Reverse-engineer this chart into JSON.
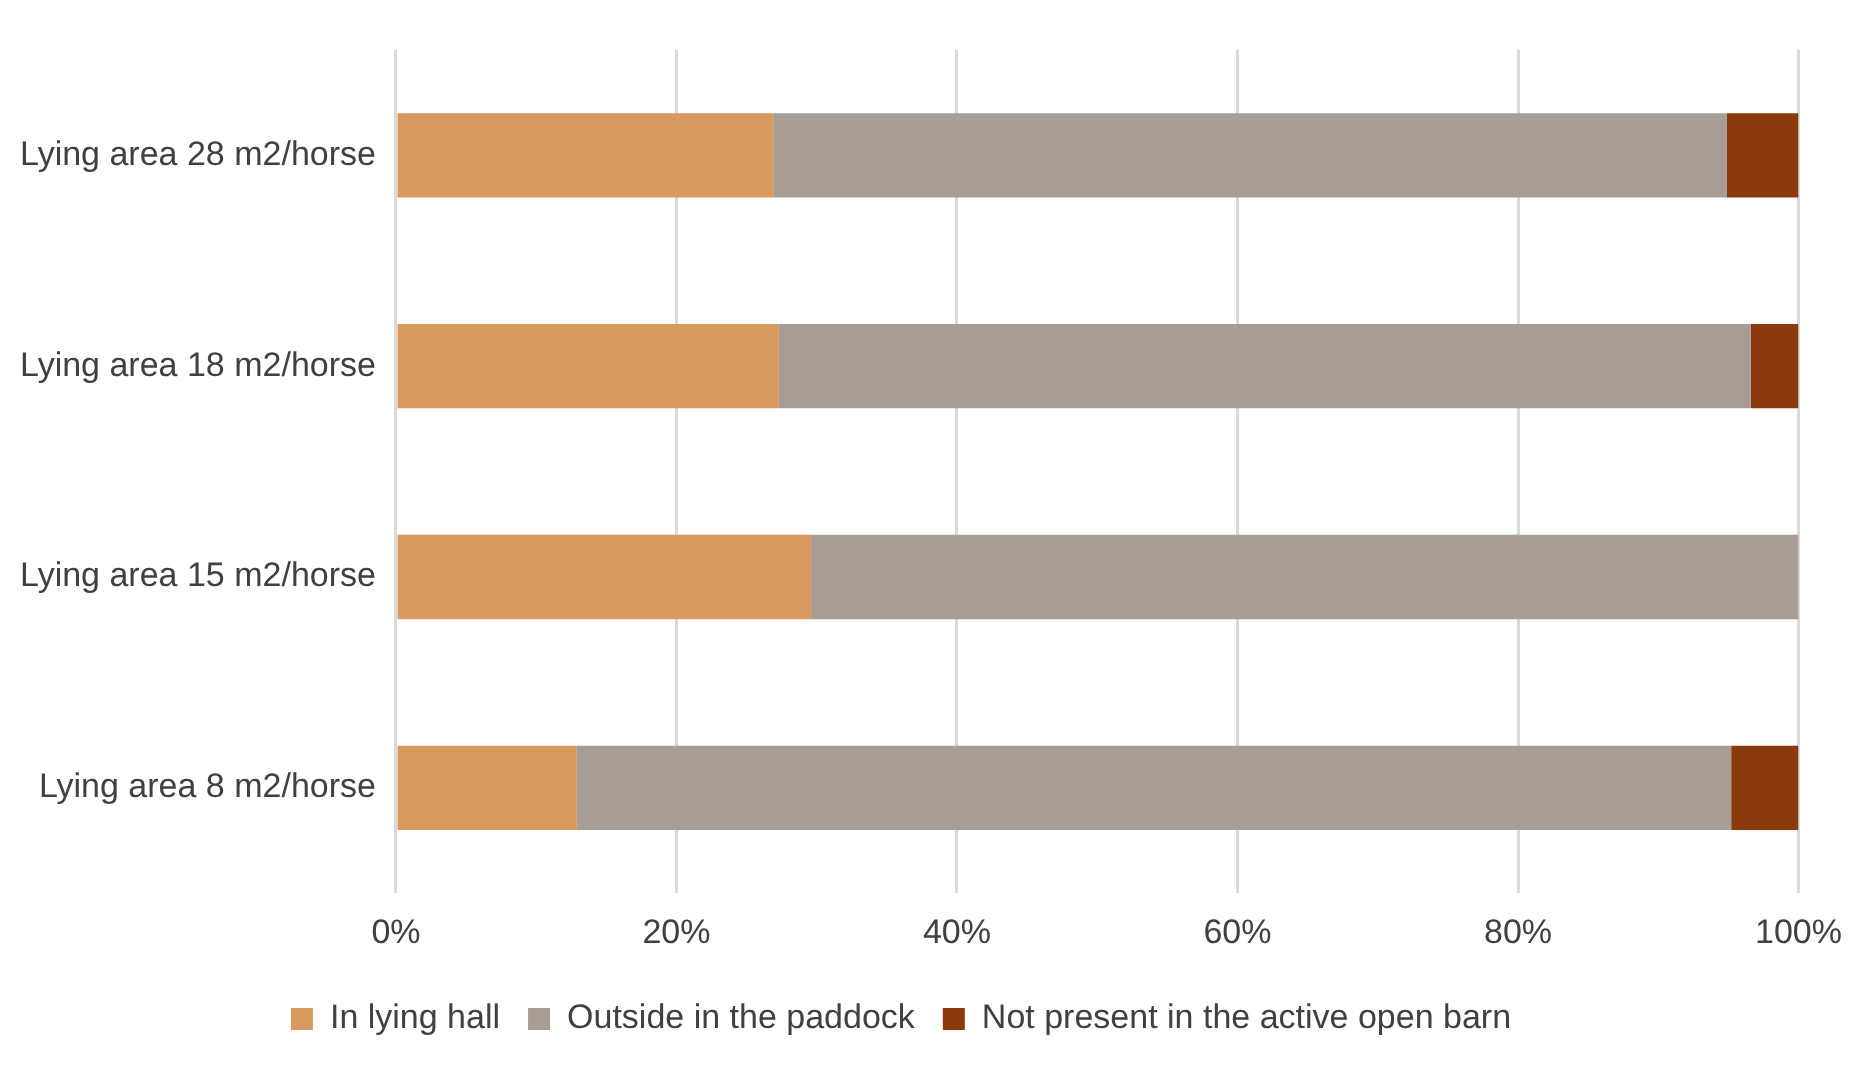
{
  "chart_data": {
    "type": "bar",
    "orientation": "horizontal",
    "stacked": true,
    "categories": [
      "Lying area 28 m2/horse",
      "Lying area 18 m2/horse",
      "Lying area 15 m2/horse",
      "Lying area 8 m2/horse"
    ],
    "series": [
      {
        "name": "In lying hall",
        "color": "#d9995f",
        "values": [
          26.9,
          27.3,
          29.6,
          12.9
        ]
      },
      {
        "name": "Outside in the paddock",
        "color": "#a89d95",
        "values": [
          68.0,
          69.3,
          70.4,
          82.3
        ]
      },
      {
        "name": "Not present in the active open barn",
        "color": "#8b3a0e",
        "values": [
          5.1,
          3.4,
          0,
          4.8
        ]
      }
    ],
    "xlim": [
      0,
      100
    ],
    "xticks": [
      {
        "value": 0,
        "label": "0%"
      },
      {
        "value": 20,
        "label": "20%"
      },
      {
        "value": 40,
        "label": "40%"
      },
      {
        "value": 60,
        "label": "60%"
      },
      {
        "value": 80,
        "label": "80%"
      },
      {
        "value": 100,
        "label": "100%"
      }
    ],
    "grid": "x",
    "legend": "bottom"
  }
}
